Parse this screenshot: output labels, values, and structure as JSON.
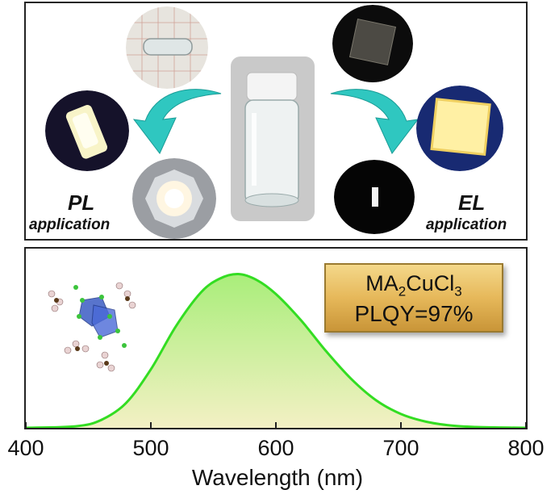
{
  "top_panel": {
    "pl_label": "PL",
    "pl_sub": "application",
    "el_label": "EL",
    "el_sub": "application"
  },
  "badge": {
    "compound_prefix": "MA",
    "compound_sub1": "2",
    "compound_mid": "CuCl",
    "compound_sub2": "3",
    "plqy": "PLQY=97%"
  },
  "chart_data": {
    "type": "area",
    "xlabel": "Wavelength (nm)",
    "xlim": [
      400,
      800
    ],
    "xticks": [
      "400",
      "500",
      "600",
      "700",
      "800"
    ],
    "ylim": [
      0,
      1.05
    ],
    "x": [
      400,
      440,
      460,
      480,
      500,
      520,
      540,
      555,
      570,
      585,
      600,
      620,
      640,
      660,
      680,
      700,
      720,
      740,
      760,
      780,
      800
    ],
    "y": [
      0.0,
      0.01,
      0.05,
      0.16,
      0.38,
      0.66,
      0.88,
      0.97,
      1.0,
      0.96,
      0.87,
      0.7,
      0.5,
      0.32,
      0.18,
      0.09,
      0.04,
      0.015,
      0.005,
      0.002,
      0.0
    ],
    "line_color": "#33dd22",
    "fill_top": "#a9ee7a",
    "fill_bottom": "#f3f0c4"
  }
}
